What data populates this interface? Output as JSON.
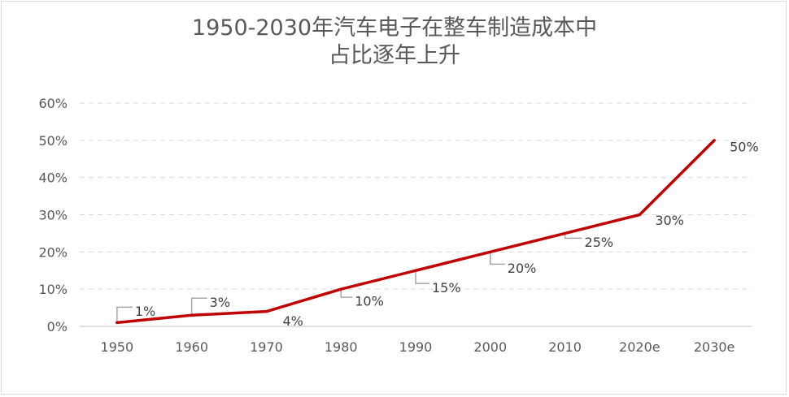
{
  "chart_data": {
    "type": "line",
    "title": "1950-2030年汽车电子在整车制造成本中",
    "subtitle": "占比逐年上升",
    "categories": [
      "1950",
      "1960",
      "1970",
      "1980",
      "1990",
      "2000",
      "2010",
      "2020e",
      "2030e"
    ],
    "series": [
      {
        "values": [
          1,
          3,
          4,
          10,
          15,
          20,
          25,
          30,
          50
        ],
        "labels": [
          "1%",
          "3%",
          "4%",
          "10%",
          "15%",
          "20%",
          "25%",
          "30%",
          "50%"
        ],
        "color": "#c00000"
      }
    ],
    "yticks": [
      0,
      10,
      20,
      30,
      40,
      50,
      60
    ],
    "ytick_labels": [
      "0%",
      "10%",
      "20%",
      "30%",
      "40%",
      "50%",
      "60%"
    ],
    "ylim": [
      0,
      60
    ],
    "grid": true,
    "legend": "none"
  }
}
